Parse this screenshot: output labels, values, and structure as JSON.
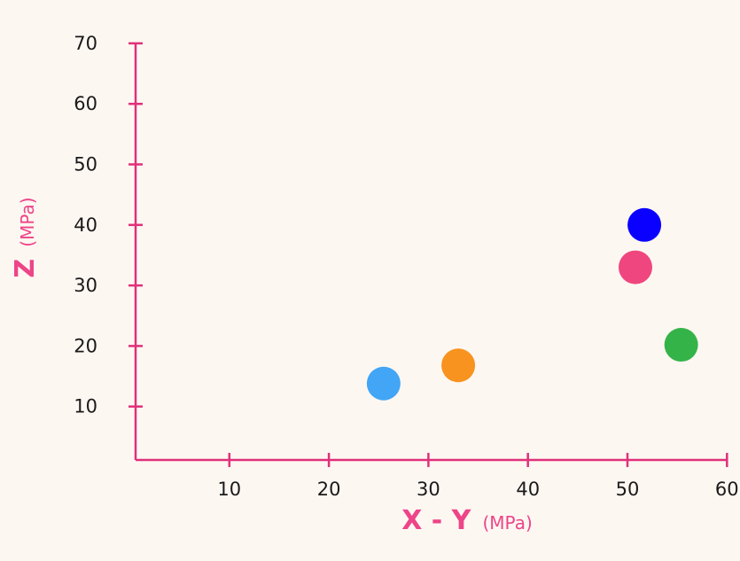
{
  "chart_data": {
    "type": "scatter",
    "xlabel": "X - Y",
    "xlabel_unit": "(MPa)",
    "ylabel": "Z",
    "ylabel_unit": "(MPa)",
    "xlim": [
      1,
      60
    ],
    "ylim": [
      0,
      70
    ],
    "x_ticks": [
      10,
      20,
      30,
      40,
      50,
      60
    ],
    "y_ticks": [
      10,
      20,
      30,
      40,
      50,
      60,
      70
    ],
    "grid": false,
    "axis_color": "#e0307a",
    "points": [
      {
        "x": 25.5,
        "y": 13.8,
        "color": "#42a5f5"
      },
      {
        "x": 33.0,
        "y": 16.8,
        "color": "#f7931e"
      },
      {
        "x": 50.8,
        "y": 33.0,
        "color": "#f0467f"
      },
      {
        "x": 51.7,
        "y": 40.0,
        "color": "#0a00ff"
      },
      {
        "x": 55.4,
        "y": 20.2,
        "color": "#34b349"
      }
    ]
  }
}
